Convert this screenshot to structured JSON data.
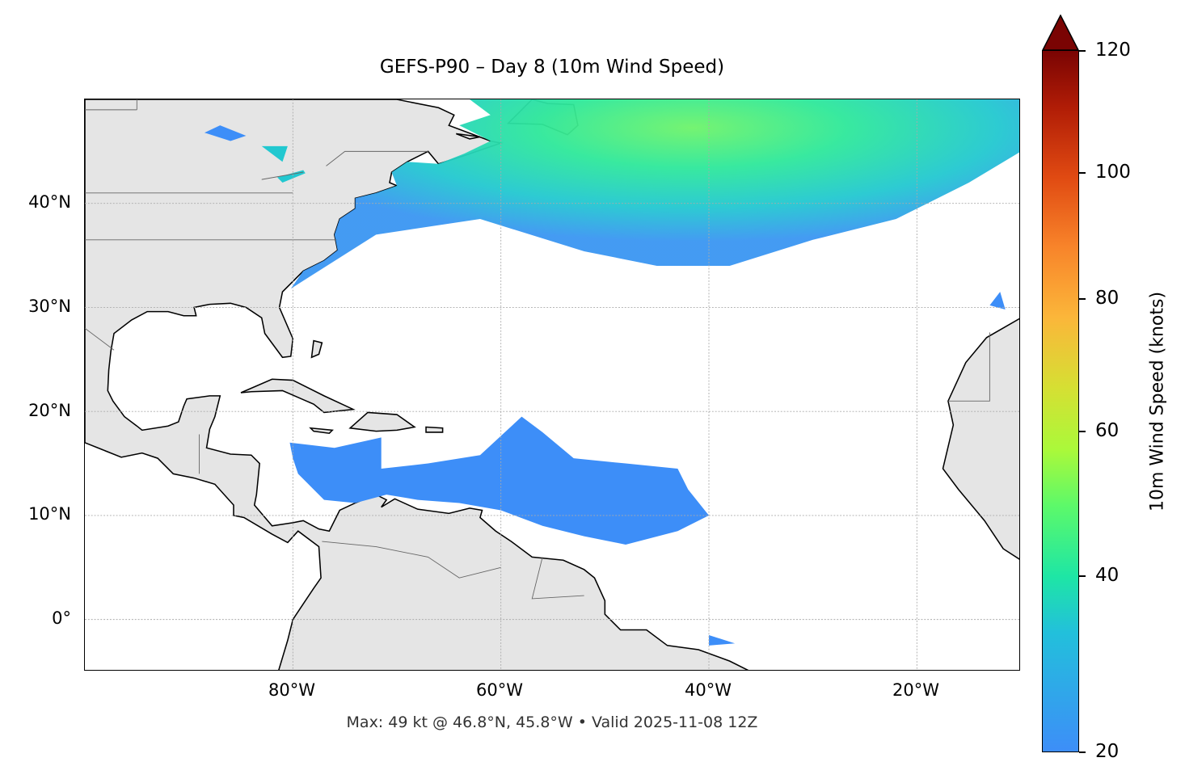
{
  "title": "GEFS-P90 – Day 8 (10m Wind Speed)",
  "footer": "Max: 49 kt @ 46.8°N, 45.8°W • Valid 2025-11-08 12Z",
  "map": {
    "extent": {
      "lon": [
        -100,
        -10
      ],
      "lat": [
        -5,
        50
      ]
    },
    "projection": "PlateCarree",
    "gridlines": "dotted",
    "lon_ticks": [
      {
        "value": -80,
        "label": "80°W"
      },
      {
        "value": -60,
        "label": "60°W"
      },
      {
        "value": -40,
        "label": "40°W"
      },
      {
        "value": -20,
        "label": "20°W"
      }
    ],
    "lat_ticks": [
      {
        "value": 40,
        "label": "40°N"
      },
      {
        "value": 30,
        "label": "30°N"
      },
      {
        "value": 20,
        "label": "20°N"
      },
      {
        "value": 10,
        "label": "10°N"
      },
      {
        "value": 0,
        "label": "0°"
      }
    ],
    "land_color": "#e5e5e5",
    "low_wind_color": "#3d8ef8",
    "high_wind_color": "#5cf07a"
  },
  "colorbar": {
    "label": "10m Wind Speed (knots)",
    "ticks": [
      "20",
      "40",
      "60",
      "80",
      "100",
      "120"
    ],
    "range": [
      20,
      120
    ],
    "extend": "max",
    "colormap": "turbo"
  }
}
